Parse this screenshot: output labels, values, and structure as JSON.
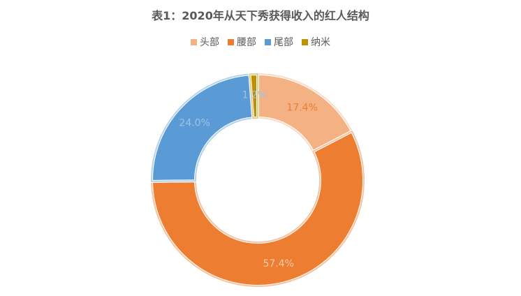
{
  "chart_data": {
    "type": "pie",
    "variant": "donut",
    "title": "表1：2020年从天下秀获得收入的红人结构",
    "categories": [
      "头部",
      "腰部",
      "尾部",
      "纳米"
    ],
    "values": [
      17.4,
      57.4,
      24.0,
      1.2
    ],
    "labels": [
      "17.4%",
      "57.4%",
      "24.0%",
      "1.2%"
    ],
    "unit": "%",
    "colors": [
      "#F4B183",
      "#ED7D31",
      "#5B9BD5",
      "#BF9000"
    ],
    "label_colors": [
      "#ED7D31",
      "#F8CBAD",
      "#9DC3E6",
      "#9DC3E6"
    ],
    "legend_position": "top"
  }
}
